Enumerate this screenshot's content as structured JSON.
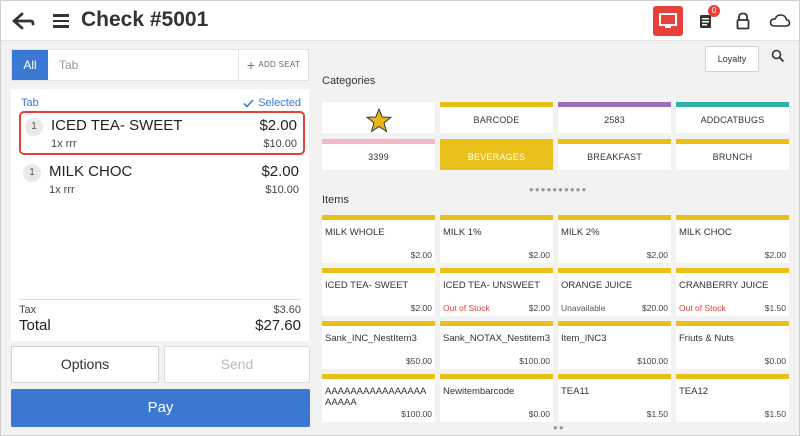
{
  "header": {
    "title": "Check #5001",
    "orders_badge": "0"
  },
  "left": {
    "tab_all": "All",
    "tab_input_placeholder": "Tab",
    "add_seat": "ADD SEAT",
    "order_section": "Tab",
    "selected_label": "Selected",
    "items": [
      {
        "qty": "1",
        "name": "ICED TEA- SWEET",
        "price": "$2.00",
        "sub": "1x  rrr",
        "sub_total": "$10.00"
      },
      {
        "qty": "1",
        "name": "MILK CHOC",
        "price": "$2.00",
        "sub": "1x  rrr",
        "sub_total": "$10.00"
      }
    ],
    "tax_label": "Tax",
    "tax_value": "$3.60",
    "total_label": "Total",
    "total_value": "$27.60",
    "options_label": "Options",
    "send_label": "Send",
    "pay_label": "Pay"
  },
  "right": {
    "loyalty_label": "Loyalty",
    "categories_label": "Categories",
    "items_label": "Items",
    "categories": [
      {
        "label": "",
        "icon": "star-icon",
        "color": "#ffffff"
      },
      {
        "label": "BARCODE",
        "color": "#e9c01a"
      },
      {
        "label": "2583",
        "color": "#9b6fb8"
      },
      {
        "label": "ADDCATBUGS",
        "color": "#2fb3a6"
      },
      {
        "label": "3399",
        "color": "#f3b8c6"
      },
      {
        "label": "BEVERAGES",
        "color": "#e9c01a",
        "active": true
      },
      {
        "label": "BREAKFAST",
        "color": "#e9c01a"
      },
      {
        "label": "BRUNCH",
        "color": "#e9c01a"
      }
    ],
    "products": [
      {
        "name": "MILK WHOLE",
        "price": "$2.00",
        "status": ""
      },
      {
        "name": "MILK 1%",
        "price": "$2.00",
        "status": ""
      },
      {
        "name": "MILK 2%",
        "price": "$2.00",
        "status": ""
      },
      {
        "name": "MILK CHOC",
        "price": "$2.00",
        "status": ""
      },
      {
        "name": "ICED TEA- SWEET",
        "price": "$2.00",
        "status": ""
      },
      {
        "name": "ICED TEA- UNSWEET",
        "price": "$2.00",
        "status": "Out of Stock"
      },
      {
        "name": "ORANGE JUICE",
        "price": "$20.00",
        "status": "Unavailable"
      },
      {
        "name": "CRANBERRY JUICE",
        "price": "$1.50",
        "status": "Out of Stock"
      },
      {
        "name": "Sank_INC_NestItem3",
        "price": "$50.00",
        "status": ""
      },
      {
        "name": "Sank_NOTAX_Nestitem3",
        "price": "$100.00",
        "status": ""
      },
      {
        "name": "Item_INC3",
        "price": "$100.00",
        "status": ""
      },
      {
        "name": "Friuts & Nuts",
        "price": "$0.00",
        "status": ""
      },
      {
        "name": "AAAAAAAAAAAAAAAAAAAAA",
        "price": "$100.00",
        "status": ""
      },
      {
        "name": "Newitembarcode",
        "price": "$0.00",
        "status": ""
      },
      {
        "name": "TEA11",
        "price": "$1.50",
        "status": ""
      },
      {
        "name": "TEA12",
        "price": "$1.50",
        "status": ""
      }
    ],
    "colors": {
      "active_category": "#e9c01a",
      "out_of_stock": "#e8403a",
      "unavailable": "#555555"
    }
  }
}
